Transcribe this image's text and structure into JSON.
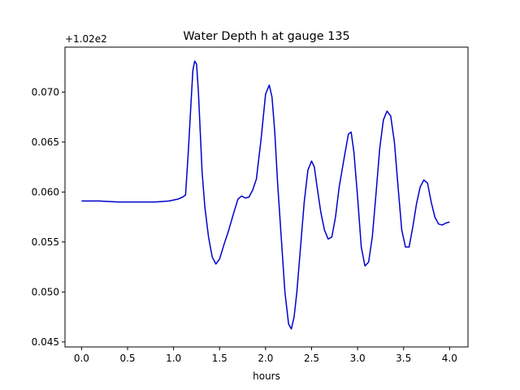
{
  "chart_data": {
    "type": "line",
    "title": "Water Depth h at gauge 135",
    "xlabel": "hours",
    "ylabel": "",
    "offset_label": "+1.02e2",
    "xlim": [
      -0.18,
      4.2
    ],
    "ylim": [
      0.0445,
      0.0745
    ],
    "xticks": [
      0.0,
      0.5,
      1.0,
      1.5,
      2.0,
      2.5,
      3.0,
      3.5,
      4.0
    ],
    "xtick_labels": [
      "0.0",
      "0.5",
      "1.0",
      "1.5",
      "2.0",
      "2.5",
      "3.0",
      "3.5",
      "4.0"
    ],
    "yticks": [
      0.045,
      0.05,
      0.055,
      0.06,
      0.065,
      0.07
    ],
    "ytick_labels": [
      "0.045",
      "0.050",
      "0.055",
      "0.060",
      "0.065",
      "0.070"
    ],
    "grid": false,
    "line_color": "#0000cc",
    "series": [
      {
        "x": [
          0.0,
          0.2,
          0.4,
          0.6,
          0.8,
          0.95,
          1.05,
          1.1,
          1.13,
          1.16,
          1.19,
          1.21,
          1.23,
          1.25,
          1.27,
          1.29,
          1.31,
          1.34,
          1.38,
          1.42,
          1.46,
          1.5,
          1.55,
          1.6,
          1.65,
          1.7,
          1.74,
          1.78,
          1.82,
          1.86,
          1.9,
          1.95,
          2.0,
          2.04,
          2.07,
          2.1,
          2.13,
          2.17,
          2.21,
          2.25,
          2.28,
          2.31,
          2.34,
          2.38,
          2.42,
          2.46,
          2.5,
          2.53,
          2.56,
          2.6,
          2.64,
          2.68,
          2.72,
          2.76,
          2.8,
          2.85,
          2.9,
          2.93,
          2.96,
          3.0,
          3.04,
          3.08,
          3.12,
          3.16,
          3.2,
          3.24,
          3.28,
          3.32,
          3.36,
          3.4,
          3.44,
          3.48,
          3.52,
          3.56,
          3.6,
          3.64,
          3.68,
          3.72,
          3.76,
          3.8,
          3.84,
          3.88,
          3.92,
          3.96,
          4.0
        ],
        "y": [
          0.0591,
          0.0591,
          0.059,
          0.059,
          0.059,
          0.0591,
          0.0593,
          0.0595,
          0.0597,
          0.064,
          0.069,
          0.0722,
          0.0731,
          0.0728,
          0.07,
          0.066,
          0.062,
          0.0585,
          0.0555,
          0.0535,
          0.0528,
          0.0533,
          0.0548,
          0.0562,
          0.0578,
          0.0593,
          0.0596,
          0.0594,
          0.0595,
          0.0602,
          0.0613,
          0.0652,
          0.0698,
          0.0707,
          0.0695,
          0.066,
          0.061,
          0.0555,
          0.05,
          0.0468,
          0.0463,
          0.0475,
          0.05,
          0.0545,
          0.059,
          0.0622,
          0.0631,
          0.0625,
          0.0605,
          0.058,
          0.0562,
          0.0553,
          0.0555,
          0.0575,
          0.0605,
          0.0632,
          0.0658,
          0.066,
          0.064,
          0.0595,
          0.0545,
          0.0526,
          0.053,
          0.0555,
          0.0598,
          0.0643,
          0.0672,
          0.0681,
          0.0676,
          0.065,
          0.0605,
          0.0562,
          0.0545,
          0.0545,
          0.0565,
          0.0588,
          0.0605,
          0.0612,
          0.0609,
          0.059,
          0.0575,
          0.0568,
          0.0567,
          0.0569,
          0.057
        ]
      }
    ]
  }
}
